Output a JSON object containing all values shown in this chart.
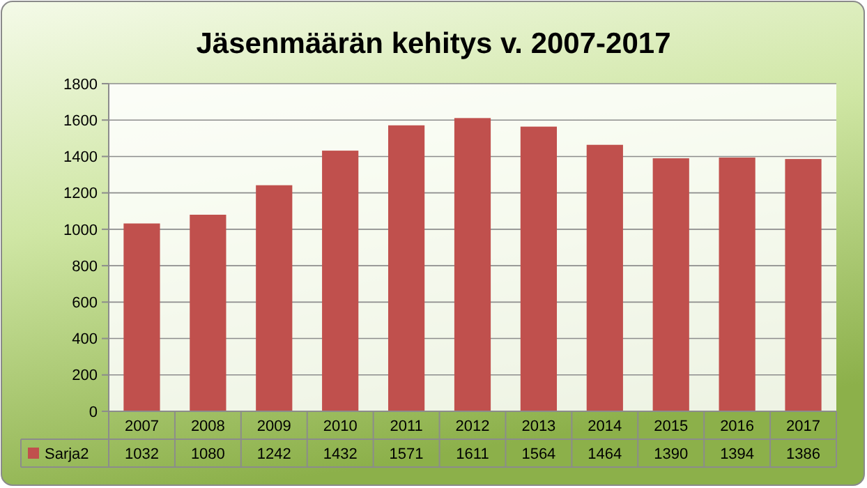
{
  "chart_data": {
    "type": "bar",
    "title": "Jäsenmäärän kehitys v. 2007-2017",
    "categories": [
      "2007",
      "2008",
      "2009",
      "2010",
      "2011",
      "2012",
      "2013",
      "2014",
      "2015",
      "2016",
      "2017"
    ],
    "series": [
      {
        "name": "Sarja2",
        "color": "#c0504d",
        "values": [
          1032,
          1080,
          1242,
          1432,
          1571,
          1611,
          1564,
          1464,
          1390,
          1394,
          1386
        ]
      }
    ],
    "ylim": [
      0,
      1800
    ],
    "yticks": [
      0,
      200,
      400,
      600,
      800,
      1000,
      1200,
      1400,
      1600,
      1800
    ],
    "grid": "y",
    "data_labels": true
  }
}
